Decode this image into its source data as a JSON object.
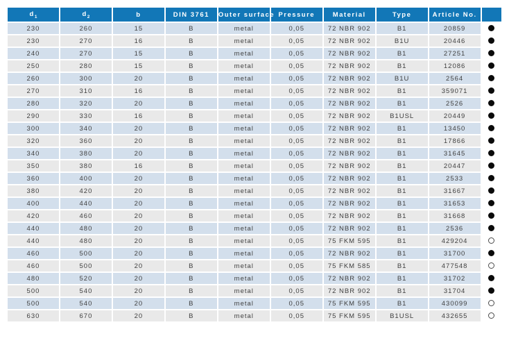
{
  "colors": {
    "header_bg": "#1277b7",
    "header_text": "#ffffff",
    "row_blue": "#d3dfec",
    "row_gray": "#e9e9e9",
    "body_text": "#3f3f3f",
    "marker_filled": "#0a0a0a",
    "marker_open_outline": "#4a4a4a"
  },
  "table": {
    "columns": [
      {
        "key": "d1",
        "text": "d",
        "sub": "1"
      },
      {
        "key": "d2",
        "text": "d",
        "sub": "2"
      },
      {
        "key": "b",
        "text": "b",
        "sub": ""
      },
      {
        "key": "din",
        "text": "DIN 3761",
        "sub": ""
      },
      {
        "key": "outer",
        "text": "Outer surface",
        "sub": ""
      },
      {
        "key": "pressure",
        "text": "Pressure",
        "sub": ""
      },
      {
        "key": "material",
        "text": "Material",
        "sub": ""
      },
      {
        "key": "type",
        "text": "Type",
        "sub": ""
      },
      {
        "key": "article",
        "text": "Article No.",
        "sub": ""
      },
      {
        "key": "marker",
        "text": "",
        "sub": ""
      }
    ],
    "marker_legend": {
      "filled": "filled-circle",
      "open": "open-circle"
    },
    "rows": [
      {
        "cells": [
          "230",
          "260",
          "15",
          "B",
          "metal",
          "0,05",
          "72 NBR 902",
          "B1",
          "20859"
        ],
        "marker": "filled"
      },
      {
        "cells": [
          "230",
          "270",
          "16",
          "B",
          "metal",
          "0,05",
          "72 NBR 902",
          "B1U",
          "20446"
        ],
        "marker": "filled"
      },
      {
        "cells": [
          "240",
          "270",
          "15",
          "B",
          "metal",
          "0,05",
          "72 NBR 902",
          "B1",
          "27251"
        ],
        "marker": "filled"
      },
      {
        "cells": [
          "250",
          "280",
          "15",
          "B",
          "metal",
          "0,05",
          "72 NBR 902",
          "B1",
          "12086"
        ],
        "marker": "filled"
      },
      {
        "cells": [
          "260",
          "300",
          "20",
          "B",
          "metal",
          "0,05",
          "72 NBR 902",
          "B1U",
          "2564"
        ],
        "marker": "filled"
      },
      {
        "cells": [
          "270",
          "310",
          "16",
          "B",
          "metal",
          "0,05",
          "72 NBR 902",
          "B1",
          "359071"
        ],
        "marker": "filled"
      },
      {
        "cells": [
          "280",
          "320",
          "20",
          "B",
          "metal",
          "0,05",
          "72 NBR 902",
          "B1",
          "2526"
        ],
        "marker": "filled"
      },
      {
        "cells": [
          "290",
          "330",
          "16",
          "B",
          "metal",
          "0,05",
          "72 NBR 902",
          "B1USL",
          "20449"
        ],
        "marker": "filled"
      },
      {
        "cells": [
          "300",
          "340",
          "20",
          "B",
          "metal",
          "0,05",
          "72 NBR 902",
          "B1",
          "13450"
        ],
        "marker": "filled"
      },
      {
        "cells": [
          "320",
          "360",
          "20",
          "B",
          "metal",
          "0,05",
          "72 NBR 902",
          "B1",
          "17866"
        ],
        "marker": "filled"
      },
      {
        "cells": [
          "340",
          "380",
          "20",
          "B",
          "metal",
          "0,05",
          "72 NBR 902",
          "B1",
          "31645"
        ],
        "marker": "filled"
      },
      {
        "cells": [
          "350",
          "380",
          "16",
          "B",
          "metal",
          "0,05",
          "72 NBR 902",
          "B1",
          "20447"
        ],
        "marker": "filled"
      },
      {
        "cells": [
          "360",
          "400",
          "20",
          "B",
          "metal",
          "0,05",
          "72 NBR 902",
          "B1",
          "2533"
        ],
        "marker": "filled"
      },
      {
        "cells": [
          "380",
          "420",
          "20",
          "B",
          "metal",
          "0,05",
          "72 NBR 902",
          "B1",
          "31667"
        ],
        "marker": "filled"
      },
      {
        "cells": [
          "400",
          "440",
          "20",
          "B",
          "metal",
          "0,05",
          "72 NBR 902",
          "B1",
          "31653"
        ],
        "marker": "filled"
      },
      {
        "cells": [
          "420",
          "460",
          "20",
          "B",
          "metal",
          "0,05",
          "72 NBR 902",
          "B1",
          "31668"
        ],
        "marker": "filled"
      },
      {
        "cells": [
          "440",
          "480",
          "20",
          "B",
          "metal",
          "0,05",
          "72 NBR 902",
          "B1",
          "2536"
        ],
        "marker": "filled"
      },
      {
        "cells": [
          "440",
          "480",
          "20",
          "B",
          "metal",
          "0,05",
          "75 FKM 595",
          "B1",
          "429204"
        ],
        "marker": "open"
      },
      {
        "cells": [
          "460",
          "500",
          "20",
          "B",
          "metal",
          "0,05",
          "72 NBR 902",
          "B1",
          "31700"
        ],
        "marker": "filled"
      },
      {
        "cells": [
          "460",
          "500",
          "20",
          "B",
          "metal",
          "0,05",
          "75 FKM 585",
          "B1",
          "477548"
        ],
        "marker": "open"
      },
      {
        "cells": [
          "480",
          "520",
          "20",
          "B",
          "metal",
          "0,05",
          "72 NBR 902",
          "B1",
          "31702"
        ],
        "marker": "filled"
      },
      {
        "cells": [
          "500",
          "540",
          "20",
          "B",
          "metal",
          "0,05",
          "72 NBR 902",
          "B1",
          "31704"
        ],
        "marker": "filled"
      },
      {
        "cells": [
          "500",
          "540",
          "20",
          "B",
          "metal",
          "0,05",
          "75 FKM 595",
          "B1",
          "430099"
        ],
        "marker": "open"
      },
      {
        "cells": [
          "630",
          "670",
          "20",
          "B",
          "metal",
          "0,05",
          "75 FKM 595",
          "B1USL",
          "432655"
        ],
        "marker": "open"
      }
    ]
  }
}
